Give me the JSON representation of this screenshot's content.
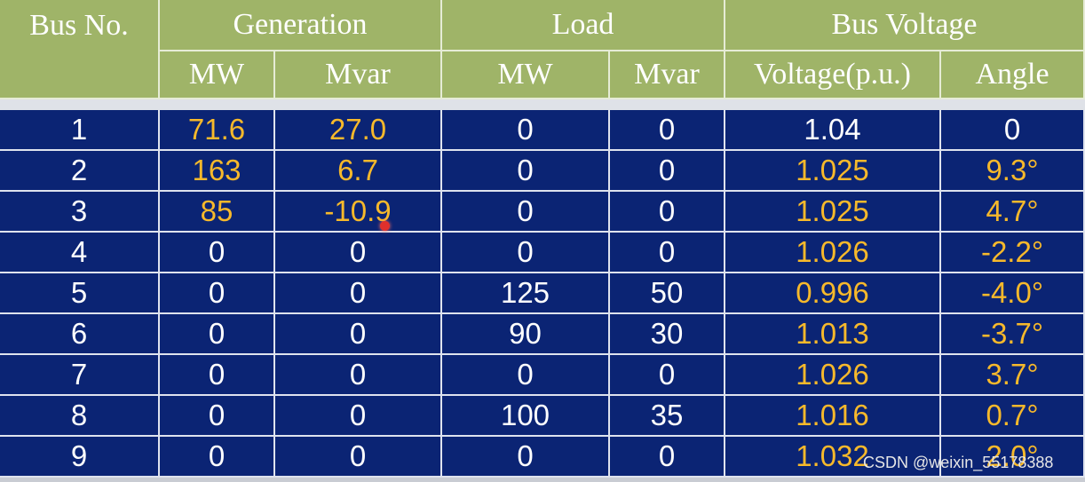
{
  "table": {
    "header": {
      "groups": [
        "Bus No.",
        "Generation",
        "Load",
        "Bus Voltage"
      ],
      "columns": [
        "MW",
        "Mvar",
        "MW",
        "Mvar",
        "Voltage(p.u.)",
        "Angle"
      ]
    },
    "rows": [
      [
        "1",
        "71.6",
        "27.0",
        "0",
        "0",
        "1.04",
        "0"
      ],
      [
        "2",
        "163",
        "6.7",
        "0",
        "0",
        "1.025",
        "9.3°"
      ],
      [
        "3",
        "85",
        "-10.9",
        "0",
        "0",
        "1.025",
        "4.7°"
      ],
      [
        "4",
        "0",
        "0",
        "0",
        "0",
        "1.026",
        "-2.2°"
      ],
      [
        "5",
        "0",
        "0",
        "125",
        "50",
        "0.996",
        "-4.0°"
      ],
      [
        "6",
        "0",
        "0",
        "90",
        "30",
        "1.013",
        "-3.7°"
      ],
      [
        "7",
        "0",
        "0",
        "0",
        "0",
        "1.026",
        "3.7°"
      ],
      [
        "8",
        "0",
        "0",
        "100",
        "35",
        "1.016",
        "0.7°"
      ],
      [
        "9",
        "0",
        "0",
        "0",
        "0",
        "1.032",
        "2.0°"
      ]
    ],
    "text_color": "#ffffff",
    "highlight_color": "#f7b92b",
    "highlighted_cells": [
      [
        0,
        1
      ],
      [
        0,
        2
      ],
      [
        1,
        1
      ],
      [
        1,
        2
      ],
      [
        2,
        1
      ],
      [
        2,
        2
      ],
      [
        1,
        5
      ],
      [
        1,
        6
      ],
      [
        2,
        5
      ],
      [
        2,
        6
      ],
      [
        3,
        5
      ],
      [
        3,
        6
      ],
      [
        4,
        5
      ],
      [
        4,
        6
      ],
      [
        5,
        5
      ],
      [
        5,
        6
      ],
      [
        6,
        5
      ],
      [
        6,
        6
      ],
      [
        7,
        5
      ],
      [
        7,
        6
      ],
      [
        8,
        5
      ],
      [
        8,
        6
      ]
    ]
  },
  "watermark": "CSDN @weixin_55178388"
}
